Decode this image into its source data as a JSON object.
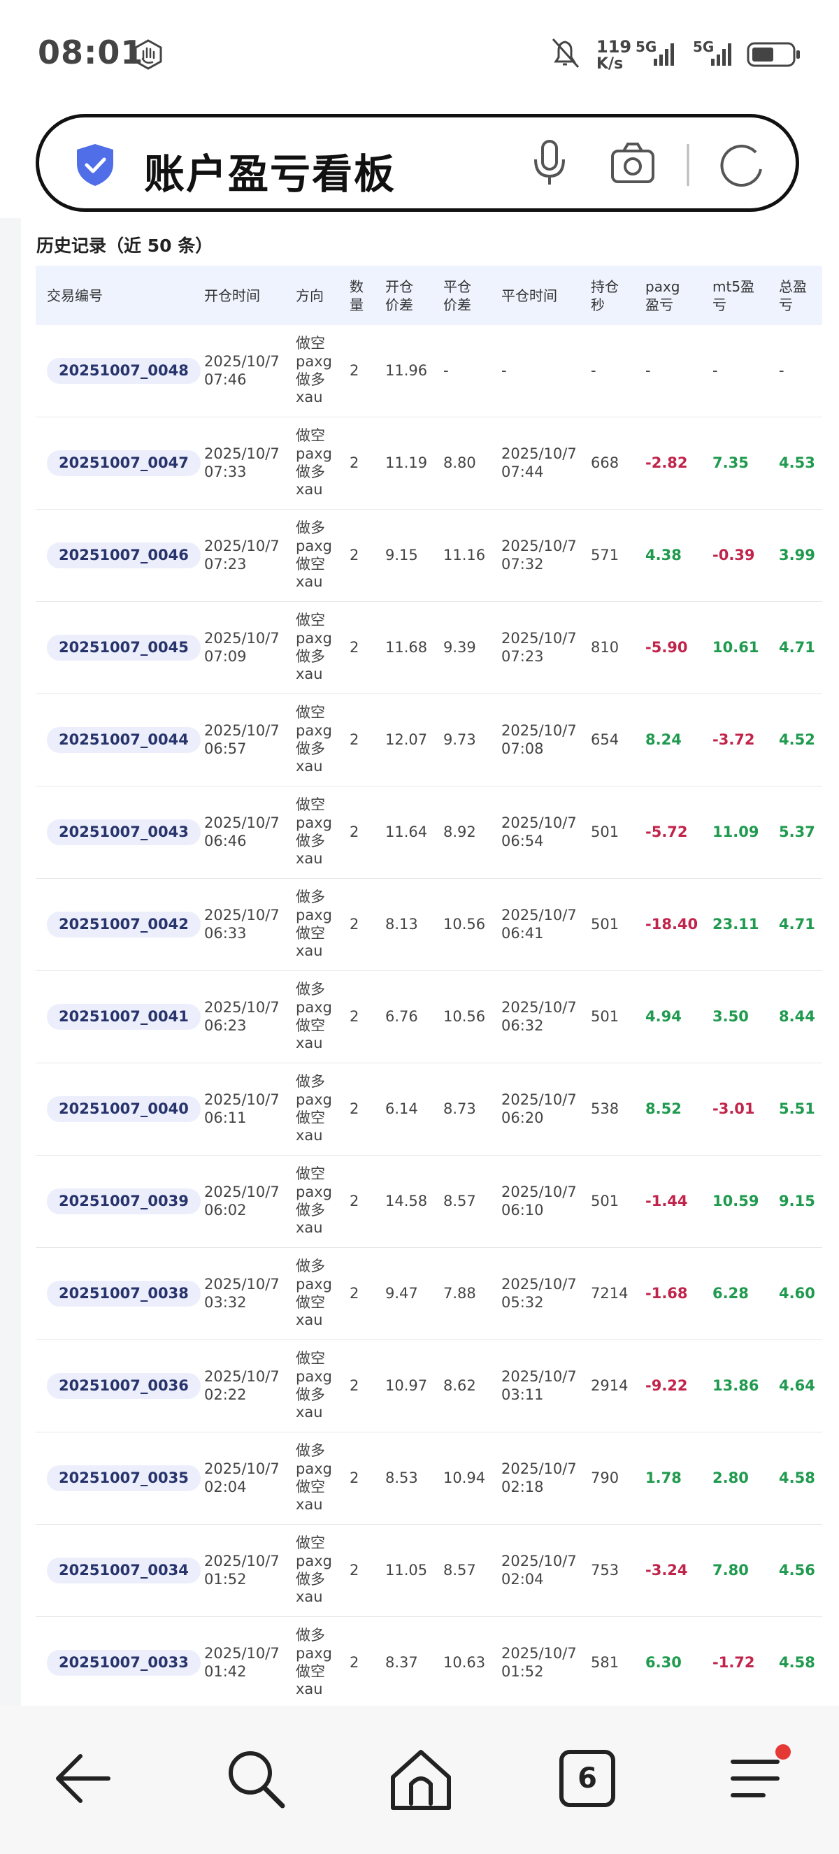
{
  "status_bar": {
    "time": "08:01",
    "speed": "119",
    "speed_unit": "K/s",
    "network_1": "5G",
    "network_2": "5G"
  },
  "search_bar": {
    "title": "账户盈亏看板"
  },
  "section_title": "历史记录（近 50 条）",
  "table": {
    "headers": [
      "交易编号",
      "开仓时间",
      "方向",
      "数量",
      "开仓价差",
      "平仓价差",
      "平仓时间",
      "持仓秒",
      "paxg盈亏",
      "mt5盈亏",
      "总盈亏"
    ],
    "rows": [
      [
        "20251007_0048",
        "2025/10/7 07:46",
        "做空paxg做多xau",
        "2",
        "11.96",
        "-",
        "-",
        "-",
        "-",
        "-",
        "-"
      ],
      [
        "20251007_0047",
        "2025/10/7 07:33",
        "做空paxg做多xau",
        "2",
        "11.19",
        "8.80",
        "2025/10/7 07:44",
        "668",
        "-2.82",
        "7.35",
        "4.53"
      ],
      [
        "20251007_0046",
        "2025/10/7 07:23",
        "做多paxg做空xau",
        "2",
        "9.15",
        "11.16",
        "2025/10/7 07:32",
        "571",
        "4.38",
        "-0.39",
        "3.99"
      ],
      [
        "20251007_0045",
        "2025/10/7 07:09",
        "做空paxg做多xau",
        "2",
        "11.68",
        "9.39",
        "2025/10/7 07:23",
        "810",
        "-5.90",
        "10.61",
        "4.71"
      ],
      [
        "20251007_0044",
        "2025/10/7 06:57",
        "做空paxg做多xau",
        "2",
        "12.07",
        "9.73",
        "2025/10/7 07:08",
        "654",
        "8.24",
        "-3.72",
        "4.52"
      ],
      [
        "20251007_0043",
        "2025/10/7 06:46",
        "做空paxg做多xau",
        "2",
        "11.64",
        "8.92",
        "2025/10/7 06:54",
        "501",
        "-5.72",
        "11.09",
        "5.37"
      ],
      [
        "20251007_0042",
        "2025/10/7 06:33",
        "做多paxg做空xau",
        "2",
        "8.13",
        "10.56",
        "2025/10/7 06:41",
        "501",
        "-18.40",
        "23.11",
        "4.71"
      ],
      [
        "20251007_0041",
        "2025/10/7 06:23",
        "做多paxg做空xau",
        "2",
        "6.76",
        "10.56",
        "2025/10/7 06:32",
        "501",
        "4.94",
        "3.50",
        "8.44"
      ],
      [
        "20251007_0040",
        "2025/10/7 06:11",
        "做多paxg做空xau",
        "2",
        "6.14",
        "8.73",
        "2025/10/7 06:20",
        "538",
        "8.52",
        "-3.01",
        "5.51"
      ],
      [
        "20251007_0039",
        "2025/10/7 06:02",
        "做空paxg做多xau",
        "2",
        "14.58",
        "8.57",
        "2025/10/7 06:10",
        "501",
        "-1.44",
        "10.59",
        "9.15"
      ],
      [
        "20251007_0038",
        "2025/10/7 03:32",
        "做多paxg做空xau",
        "2",
        "9.47",
        "7.88",
        "2025/10/7 05:32",
        "7214",
        "-1.68",
        "6.28",
        "4.60"
      ],
      [
        "20251007_0036",
        "2025/10/7 02:22",
        "做空paxg做多xau",
        "2",
        "10.97",
        "8.62",
        "2025/10/7 03:11",
        "2914",
        "-9.22",
        "13.86",
        "4.64"
      ],
      [
        "20251007_0035",
        "2025/10/7 02:04",
        "做多paxg做空xau",
        "2",
        "8.53",
        "10.94",
        "2025/10/7 02:18",
        "790",
        "1.78",
        "2.80",
        "4.58"
      ],
      [
        "20251007_0034",
        "2025/10/7 01:52",
        "做空paxg做多xau",
        "2",
        "11.05",
        "8.57",
        "2025/10/7 02:04",
        "753",
        "-3.24",
        "7.80",
        "4.56"
      ],
      [
        "20251007_0033",
        "2025/10/7 01:42",
        "做多paxg做空xau",
        "2",
        "8.37",
        "10.63",
        "2025/10/7 01:52",
        "581",
        "6.30",
        "-1.72",
        "4.58"
      ]
    ]
  },
  "bottom_nav": {
    "tab_count": "6"
  }
}
